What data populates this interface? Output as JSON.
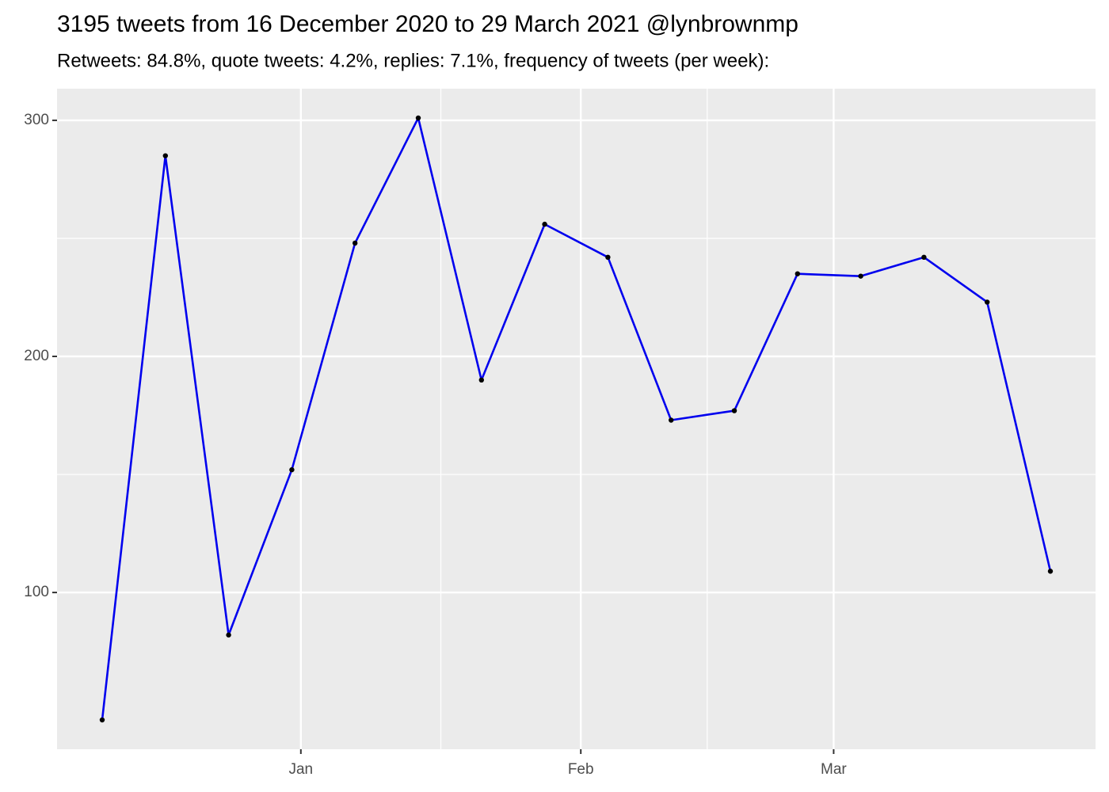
{
  "chart_data": {
    "type": "line",
    "title": "3195 tweets from 16 December 2020 to 29 March 2021 @lynbrownmp",
    "subtitle": "Retweets: 84.8%, quote tweets: 4.2%, replies: 7.1%, frequency of tweets (per week):",
    "x": [
      -22,
      -15,
      -8,
      -1,
      6,
      13,
      20,
      27,
      34,
      41,
      48,
      55,
      62,
      69,
      76,
      83
    ],
    "series": [
      {
        "name": "tweets",
        "color": "#0000ee",
        "point_color": "#000000",
        "values": [
          46,
          285,
          82,
          152,
          248,
          301,
          190,
          256,
          242,
          173,
          177,
          235,
          234,
          242,
          223,
          109
        ]
      }
    ],
    "xlim": [
      -27,
      88
    ],
    "xticks": [
      {
        "value": 0,
        "label": "Jan"
      },
      {
        "value": 31,
        "label": "Feb"
      },
      {
        "value": 59,
        "label": "Mar"
      }
    ],
    "ylim": [
      33.6,
      313.4
    ],
    "yticks": [
      100,
      200,
      300
    ],
    "grid": true
  }
}
